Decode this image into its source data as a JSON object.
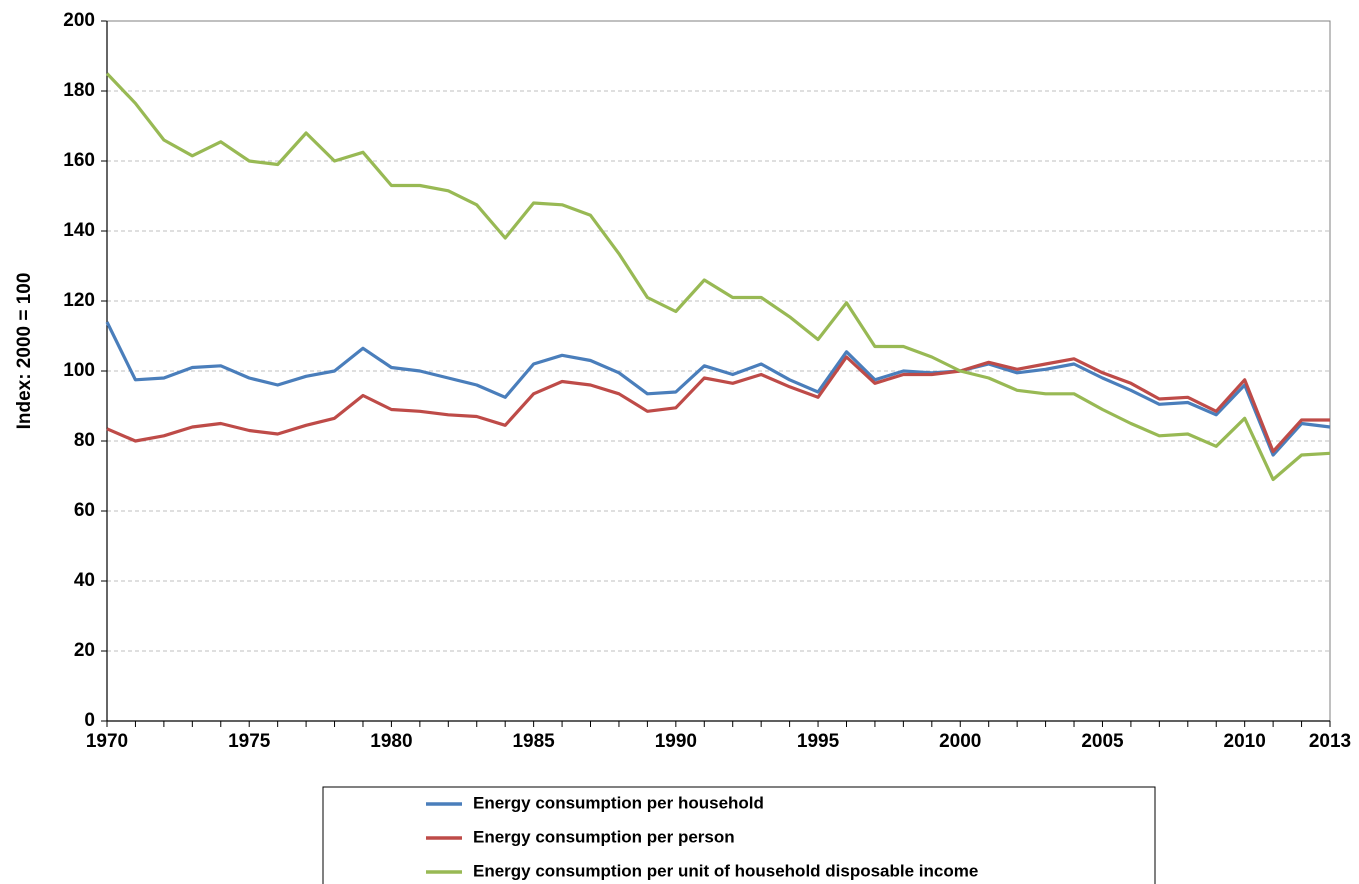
{
  "chart_data": {
    "type": "line",
    "title": "",
    "xlabel": "",
    "ylabel": "Index: 2000 = 100",
    "xlim": [
      1970,
      2013
    ],
    "ylim": [
      0,
      200
    ],
    "x_ticks": [
      1970,
      1975,
      1980,
      1985,
      1990,
      1995,
      2000,
      2005,
      2010,
      2013
    ],
    "y_ticks": [
      0,
      20,
      40,
      60,
      80,
      100,
      120,
      140,
      160,
      180,
      200
    ],
    "grid": "horizontal dashed",
    "legend_position": "bottom",
    "x": [
      1970,
      1971,
      1972,
      1973,
      1974,
      1975,
      1976,
      1977,
      1978,
      1979,
      1980,
      1981,
      1982,
      1983,
      1984,
      1985,
      1986,
      1987,
      1988,
      1989,
      1990,
      1991,
      1992,
      1993,
      1994,
      1995,
      1996,
      1997,
      1998,
      1999,
      2000,
      2001,
      2002,
      2003,
      2004,
      2005,
      2006,
      2007,
      2008,
      2009,
      2010,
      2011,
      2012,
      2013
    ],
    "series": [
      {
        "name": "Energy consumption per household",
        "color": "#4a7ebb",
        "values": [
          114,
          97.5,
          98,
          101,
          101.5,
          98,
          96,
          98.5,
          100,
          106.5,
          101,
          100,
          98,
          96,
          92.5,
          102,
          104.5,
          103,
          99.5,
          93.5,
          94,
          101.5,
          99,
          102,
          97.5,
          94,
          105.5,
          97.5,
          100,
          99.5,
          100,
          102,
          99.5,
          100.5,
          102,
          98,
          94.5,
          90.5,
          91,
          87.5,
          96,
          76,
          85,
          84
        ]
      },
      {
        "name": "Energy consumption per person",
        "color": "#be4b48",
        "values": [
          83.5,
          80,
          81.5,
          84,
          85,
          83,
          82,
          84.5,
          86.5,
          93,
          89,
          88.5,
          87.5,
          87,
          84.5,
          93.5,
          97,
          96,
          93.5,
          88.5,
          89.5,
          98,
          96.5,
          99,
          95.5,
          92.5,
          104,
          96.5,
          99,
          99,
          100,
          102.5,
          100.5,
          102,
          103.5,
          99.5,
          96.5,
          92,
          92.5,
          88.5,
          97.5,
          77,
          86,
          86
        ]
      },
      {
        "name": "Energy consumption per unit of household disposable income",
        "color": "#98b954",
        "values": [
          185,
          176.5,
          166,
          161.5,
          165.5,
          160,
          159,
          168,
          160,
          162.5,
          153,
          153,
          151.5,
          147.5,
          138,
          148,
          147.5,
          144.5,
          133.5,
          121,
          117,
          126,
          121,
          121,
          115.5,
          109,
          119.5,
          107,
          107,
          104,
          100,
          98,
          94.5,
          93.5,
          93.5,
          89,
          85,
          81.5,
          82,
          78.5,
          86.5,
          69,
          76,
          76.5
        ]
      }
    ]
  }
}
